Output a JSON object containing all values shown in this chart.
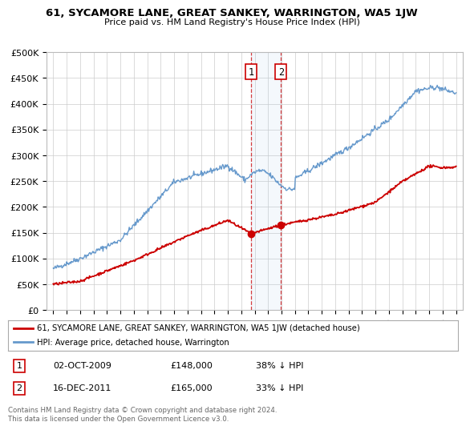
{
  "title": "61, SYCAMORE LANE, GREAT SANKEY, WARRINGTON, WA5 1JW",
  "subtitle": "Price paid vs. HM Land Registry's House Price Index (HPI)",
  "ylim": [
    0,
    500000
  ],
  "yticks": [
    0,
    50000,
    100000,
    150000,
    200000,
    250000,
    300000,
    350000,
    400000,
    450000,
    500000
  ],
  "ytick_labels": [
    "£0",
    "£50K",
    "£100K",
    "£150K",
    "£200K",
    "£250K",
    "£300K",
    "£350K",
    "£400K",
    "£450K",
    "£500K"
  ],
  "xlim_start": 1994.5,
  "xlim_end": 2025.5,
  "xticks": [
    1995,
    1996,
    1997,
    1998,
    1999,
    2000,
    2001,
    2002,
    2003,
    2004,
    2005,
    2006,
    2007,
    2008,
    2009,
    2010,
    2011,
    2012,
    2013,
    2014,
    2015,
    2016,
    2017,
    2018,
    2019,
    2020,
    2021,
    2022,
    2023,
    2024,
    2025
  ],
  "transaction1_x": 2009.75,
  "transaction1_y": 148000,
  "transaction2_x": 2011.96,
  "transaction2_y": 165000,
  "transaction1_date": "02-OCT-2009",
  "transaction1_price": "£148,000",
  "transaction1_hpi": "38% ↓ HPI",
  "transaction2_date": "16-DEC-2011",
  "transaction2_price": "£165,000",
  "transaction2_hpi": "33% ↓ HPI",
  "shade_start": 2009.75,
  "shade_end": 2011.96,
  "red_line_color": "#cc0000",
  "blue_line_color": "#6699cc",
  "legend_label_red": "61, SYCAMORE LANE, GREAT SANKEY, WARRINGTON, WA5 1JW (detached house)",
  "legend_label_blue": "HPI: Average price, detached house, Warrington",
  "footer_text": "Contains HM Land Registry data © Crown copyright and database right 2024.\nThis data is licensed under the Open Government Licence v3.0.",
  "background_color": "#ffffff",
  "grid_color": "#cccccc"
}
